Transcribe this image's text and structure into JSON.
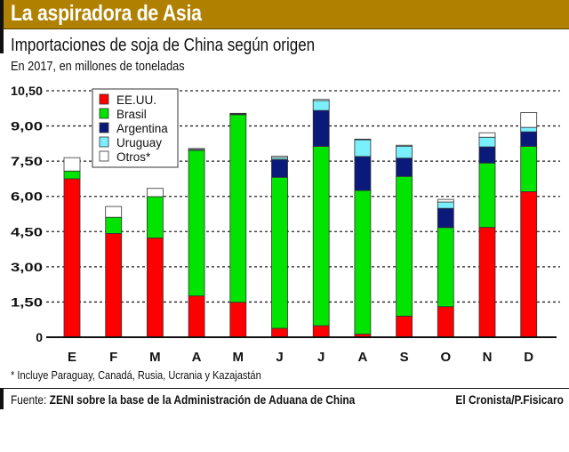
{
  "header": {
    "banner": "La aspiradora de Asia",
    "title": "Importaciones de soja de China según origen",
    "subtitle": "En 2017, en millones de toneladas"
  },
  "footnote": "* Incluye Paraguay, Canadá, Rusia, Ucrania y Kazajastán",
  "footer": {
    "source_label": "Fuente: ",
    "source_text": "ZENI sobre la base de la Administración de Aduana de China",
    "credit": "El Cronista/P.Fisicaro"
  },
  "chart_data": {
    "type": "bar",
    "stacked": true,
    "title": "Importaciones de soja de China según origen",
    "subtitle": "En 2017, en millones de toneladas",
    "xlabel": "",
    "ylabel": "",
    "ylim": [
      0,
      10.5
    ],
    "yticks": [
      "0",
      "1,50",
      "3,00",
      "4,50",
      "6,00",
      "7,50",
      "9,00",
      "10,50"
    ],
    "ytick_values": [
      0,
      1.5,
      3,
      4.5,
      6,
      7.5,
      9,
      10.5
    ],
    "grid": true,
    "legend_position": "top-left",
    "categories": [
      "E",
      "F",
      "M",
      "A",
      "M",
      "J",
      "J",
      "A",
      "S",
      "O",
      "N",
      "D"
    ],
    "series": [
      {
        "name": "EE.UU.",
        "color": "#ff0000",
        "values": [
          6.75,
          4.42,
          4.23,
          1.76,
          1.49,
          0.38,
          0.49,
          0.13,
          0.9,
          1.3,
          4.68,
          6.2
        ]
      },
      {
        "name": "Brasil",
        "color": "#00e400",
        "values": [
          0.33,
          0.69,
          1.76,
          6.2,
          7.99,
          6.43,
          7.64,
          6.12,
          5.95,
          3.37,
          2.74,
          1.93
        ]
      },
      {
        "name": "Argentina",
        "color": "#0a1a7a",
        "values": [
          0,
          0,
          0,
          0,
          0,
          0.76,
          1.53,
          1.45,
          0.78,
          0.82,
          0.69,
          0.62
        ]
      },
      {
        "name": "Uruguay",
        "color": "#7af0ff",
        "values": [
          0,
          0,
          0,
          0.04,
          0.03,
          0.08,
          0.42,
          0.71,
          0.51,
          0.27,
          0.41,
          0.19
        ]
      },
      {
        "name": "Otros*",
        "color": "#ffffff",
        "values": [
          0.57,
          0.46,
          0.35,
          0.04,
          0.03,
          0.06,
          0.05,
          0.03,
          0.04,
          0.11,
          0.19,
          0.63
        ]
      }
    ]
  }
}
